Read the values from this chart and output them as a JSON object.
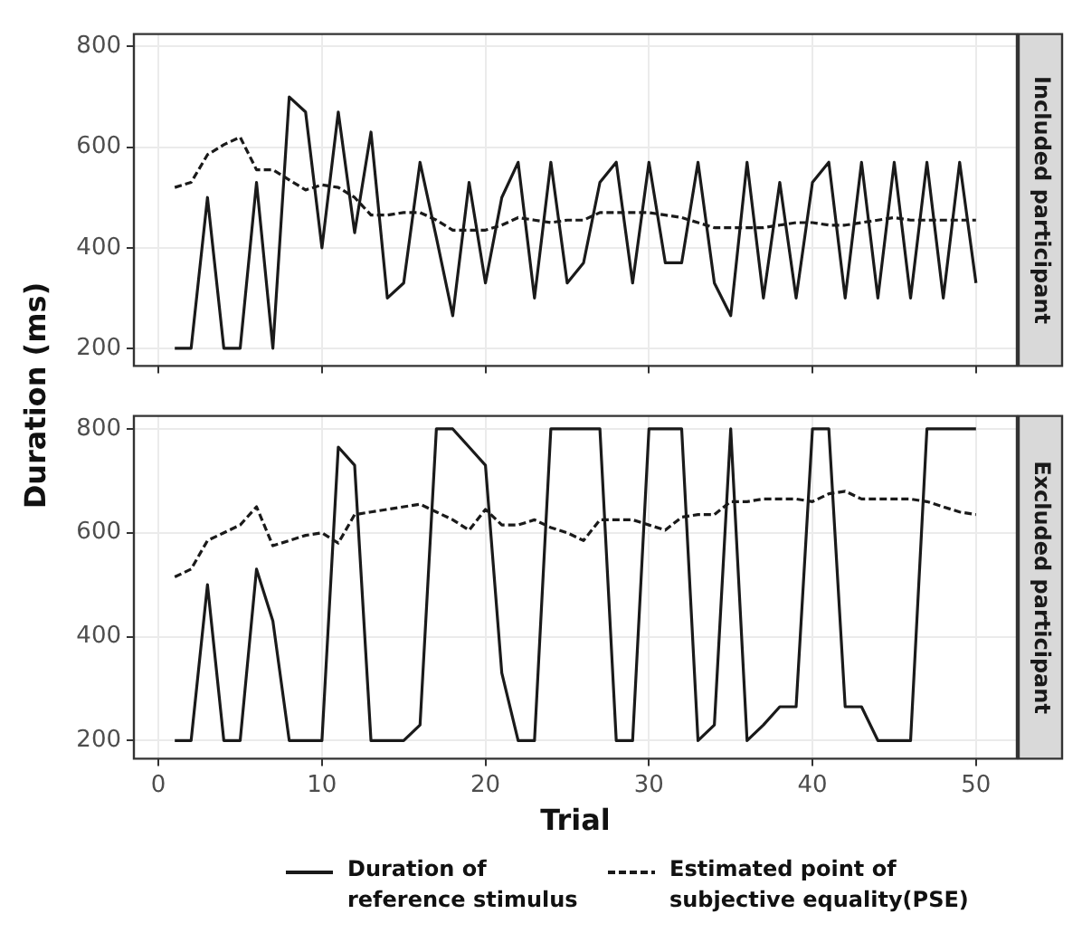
{
  "chart_data": [
    {
      "type": "line",
      "annotations": [
        "Included participant"
      ],
      "ylabel": "Duration  (ms)",
      "x": [
        1,
        2,
        3,
        4,
        5,
        6,
        7,
        8,
        9,
        10,
        11,
        12,
        13,
        14,
        15,
        16,
        17,
        18,
        19,
        20,
        21,
        22,
        23,
        24,
        25,
        26,
        27,
        28,
        29,
        30,
        31,
        32,
        33,
        34,
        35,
        36,
        37,
        38,
        39,
        40,
        41,
        42,
        43,
        44,
        45,
        46,
        47,
        48,
        49,
        50
      ],
      "series": [
        {
          "color": "#1a1a1a",
          "line_style": "solid",
          "values": [
            200,
            200,
            500,
            200,
            200,
            530,
            200,
            700,
            670,
            400,
            670,
            430,
            630,
            300,
            330,
            570,
            420,
            265,
            530,
            330,
            500,
            570,
            300,
            570,
            330,
            370,
            530,
            570,
            330,
            570,
            370,
            370,
            570,
            330,
            265,
            570,
            300,
            530,
            300,
            530,
            570,
            300,
            570,
            300,
            570,
            300,
            570,
            300,
            570,
            330
          ]
        },
        {
          "color": "#1a1a1a",
          "line_style": "dashed",
          "values": [
            520,
            530,
            585,
            605,
            620,
            555,
            555,
            535,
            515,
            525,
            520,
            500,
            465,
            465,
            470,
            470,
            455,
            435,
            435,
            435,
            445,
            460,
            455,
            450,
            455,
            455,
            470,
            470,
            470,
            470,
            465,
            460,
            450,
            440,
            440,
            440,
            440,
            445,
            450,
            450,
            445,
            445,
            450,
            455,
            460,
            455,
            455,
            455,
            455,
            455
          ]
        }
      ],
      "xlim": [
        -1.5,
        52.5
      ],
      "xticks": [
        0,
        10,
        20,
        30,
        40,
        50
      ],
      "ylim": [
        165,
        825
      ],
      "yticks": [
        200,
        400,
        600,
        800
      ],
      "grid": true,
      "tick_labels": "y"
    },
    {
      "type": "line",
      "annotations": [
        "Excluded participant"
      ],
      "xlabel": "Trial",
      "x": [
        1,
        2,
        3,
        4,
        5,
        6,
        7,
        8,
        9,
        10,
        11,
        12,
        13,
        14,
        15,
        16,
        17,
        18,
        19,
        20,
        21,
        22,
        23,
        24,
        25,
        26,
        27,
        28,
        29,
        30,
        31,
        32,
        33,
        34,
        35,
        36,
        37,
        38,
        39,
        40,
        41,
        42,
        43,
        44,
        45,
        46,
        47,
        48,
        49,
        50
      ],
      "series": [
        {
          "name": "Duration  of reference stimulus",
          "color": "#1a1a1a",
          "line_style": "solid",
          "values": [
            200,
            200,
            500,
            200,
            200,
            530,
            430,
            200,
            200,
            200,
            765,
            730,
            200,
            200,
            200,
            230,
            800,
            800,
            765,
            730,
            330,
            200,
            200,
            800,
            800,
            800,
            800,
            200,
            200,
            800,
            800,
            800,
            200,
            230,
            800,
            200,
            230,
            265,
            265,
            800,
            800,
            265,
            265,
            200,
            200,
            200,
            800,
            800,
            800,
            800
          ]
        },
        {
          "name": "Estimated point of subjective equality(PSE)",
          "color": "#1a1a1a",
          "line_style": "dashed",
          "values": [
            515,
            530,
            585,
            600,
            615,
            650,
            575,
            585,
            595,
            600,
            580,
            635,
            640,
            645,
            650,
            655,
            640,
            625,
            605,
            645,
            615,
            615,
            625,
            610,
            600,
            585,
            625,
            625,
            625,
            615,
            605,
            630,
            635,
            635,
            660,
            660,
            665,
            665,
            665,
            660,
            675,
            680,
            665,
            665,
            665,
            665,
            660,
            650,
            640,
            635
          ]
        }
      ],
      "xlim": [
        -1.5,
        52.5
      ],
      "xticks": [
        0,
        10,
        20,
        30,
        40,
        50
      ],
      "ylim": [
        165,
        825
      ],
      "yticks": [
        200,
        400,
        600,
        800
      ],
      "grid": true,
      "legend": "bottom"
    }
  ]
}
